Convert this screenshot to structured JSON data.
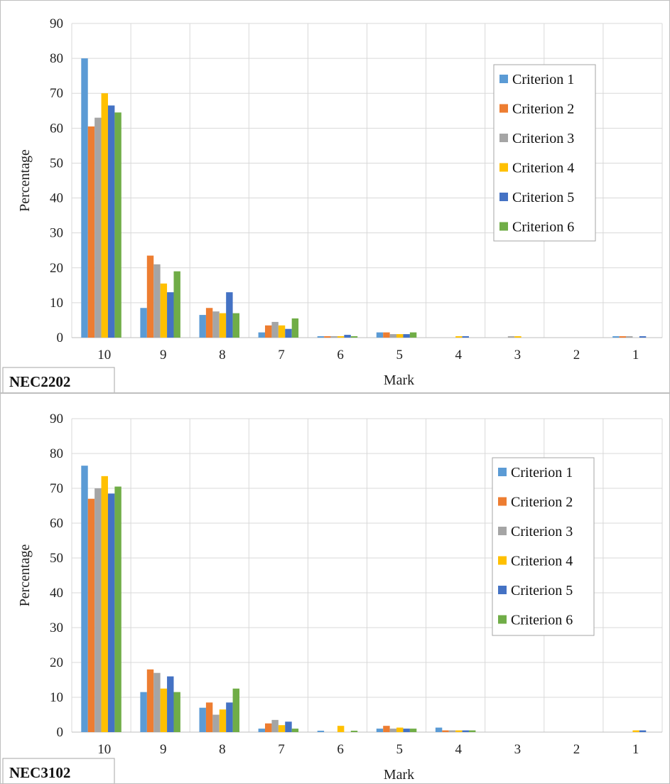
{
  "chart_data": [
    {
      "type": "bar",
      "tag": "NEC2202",
      "xlabel": "Mark",
      "ylabel": "Percentage",
      "ylim": [
        0,
        90
      ],
      "yticks": [
        "0",
        "10",
        "20",
        "30",
        "40",
        "50",
        "60",
        "70",
        "80",
        "90"
      ],
      "categories": [
        "10",
        "9",
        "8",
        "7",
        "6",
        "5",
        "4",
        "3",
        "2",
        "1"
      ],
      "grid": true,
      "legend_position": "top-right",
      "series": [
        {
          "name": "Criterion 1",
          "color": "#5B9BD5",
          "values": [
            80,
            8.5,
            6.5,
            1.5,
            0.4,
            1.5,
            0,
            0,
            0,
            0.4
          ]
        },
        {
          "name": "Criterion 2",
          "color": "#ED7D31",
          "values": [
            60.5,
            23.5,
            8.5,
            3.5,
            0.4,
            1.5,
            0,
            0,
            0,
            0.4
          ]
        },
        {
          "name": "Criterion 3",
          "color": "#A5A5A5",
          "values": [
            63,
            21,
            7.5,
            4.5,
            0.4,
            1,
            0,
            0.4,
            0,
            0.4
          ]
        },
        {
          "name": "Criterion 4",
          "color": "#FFC000",
          "values": [
            70,
            15.5,
            7,
            3.5,
            0.4,
            1,
            0.4,
            0.4,
            0,
            0
          ]
        },
        {
          "name": "Criterion 5",
          "color": "#4472C4",
          "values": [
            66.5,
            13,
            13,
            2.5,
            0.8,
            1,
            0.4,
            0,
            0,
            0.4
          ]
        },
        {
          "name": "Criterion 6",
          "color": "#70AD47",
          "values": [
            64.5,
            19,
            7,
            5.5,
            0.4,
            1.5,
            0,
            0,
            0,
            0
          ]
        }
      ]
    },
    {
      "type": "bar",
      "tag": "NEC3102",
      "xlabel": "Mark",
      "ylabel": "Percentage",
      "ylim": [
        0,
        90
      ],
      "yticks": [
        "0",
        "10",
        "20",
        "30",
        "40",
        "50",
        "60",
        "70",
        "80",
        "90"
      ],
      "categories": [
        "10",
        "9",
        "8",
        "7",
        "6",
        "5",
        "4",
        "3",
        "2",
        "1"
      ],
      "grid": true,
      "legend_position": "top-right",
      "series": [
        {
          "name": "Criterion 1",
          "color": "#5B9BD5",
          "values": [
            76.5,
            11.5,
            7,
            1,
            0.4,
            1,
            1.3,
            0,
            0,
            0
          ]
        },
        {
          "name": "Criterion 2",
          "color": "#ED7D31",
          "values": [
            67,
            18,
            8.5,
            2.5,
            0,
            1.8,
            0.5,
            0,
            0,
            0
          ]
        },
        {
          "name": "Criterion 3",
          "color": "#A5A5A5",
          "values": [
            70,
            17,
            5,
            3.5,
            0,
            1,
            0.5,
            0,
            0,
            0
          ]
        },
        {
          "name": "Criterion 4",
          "color": "#FFC000",
          "values": [
            73.5,
            12.5,
            6.5,
            2,
            1.8,
            1.3,
            0.5,
            0,
            0,
            0.5
          ]
        },
        {
          "name": "Criterion 5",
          "color": "#4472C4",
          "values": [
            68.5,
            16,
            8.5,
            3,
            0,
            1,
            0.5,
            0,
            0,
            0.5
          ]
        },
        {
          "name": "Criterion 6",
          "color": "#70AD47",
          "values": [
            70.5,
            11.5,
            12.5,
            1,
            0.4,
            1,
            0.5,
            0,
            0,
            0
          ]
        }
      ]
    }
  ]
}
